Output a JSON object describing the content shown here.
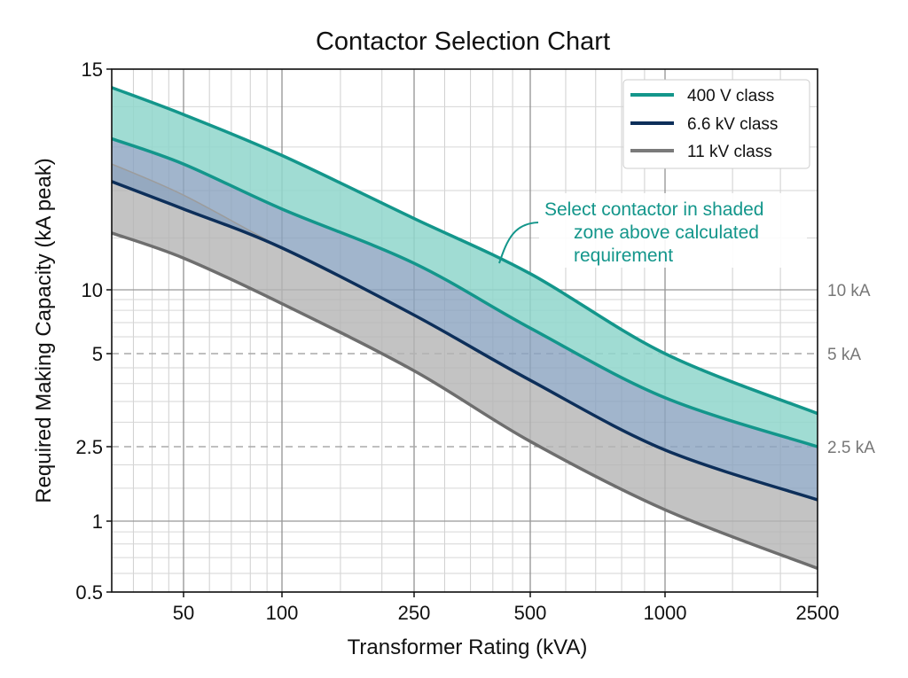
{
  "chart_data": {
    "type": "area",
    "title": "Contactor Selection Chart",
    "xlabel": "Transformer Rating (kVA)",
    "ylabel": "Required Making Capacity (kA peak)",
    "x_scale": "log",
    "xlim": [
      30,
      2500
    ],
    "ylim": [
      0.5,
      15
    ],
    "x_ticks": [
      50,
      100,
      250,
      500,
      1000,
      2500
    ],
    "x_tick_labels": [
      "50",
      "100",
      "250",
      "500",
      "1000",
      "2500"
    ],
    "y_ticks": [
      15,
      10,
      5,
      2.5,
      1,
      0.5
    ],
    "y_tick_labels": [
      "15",
      "10",
      "5",
      "2.5",
      "1",
      "0.5"
    ],
    "grid": true,
    "legend_position": "top-right",
    "x": [
      30,
      50,
      100,
      250,
      500,
      1000,
      2500
    ],
    "series": [
      {
        "name": "400 V class",
        "color": "#13968b",
        "fill": "#8fd6cb",
        "upper": [
          14.5,
          13.8,
          12.8,
          11.4,
          10.3,
          5.0,
          3.2
        ],
        "lower": [
          13.2,
          12.6,
          11.6,
          10.5,
          6.6,
          3.6,
          2.5
        ]
      },
      {
        "name": "6.6 kV class",
        "color": "#0d2f5a",
        "fill": "#8aa3bf",
        "upper": [
          13.2,
          12.6,
          11.6,
          10.5,
          6.6,
          3.6,
          2.5
        ],
        "lower": [
          12.2,
          11.6,
          10.8,
          7.6,
          4.1,
          2.4,
          1.3
        ]
      },
      {
        "name": "11 kV class",
        "color": "#6e6e6e",
        "fill": "#b4b4b4",
        "upper": [
          12.6,
          11.9,
          10.8,
          7.6,
          4.1,
          2.4,
          1.3
        ],
        "lower": [
          11.1,
          10.6,
          8.6,
          4.4,
          2.6,
          1.15,
          0.63
        ]
      }
    ],
    "reference_lines": [
      {
        "value": 10,
        "label": "10 kA",
        "style": "solid"
      },
      {
        "value": 5,
        "label": "5 kA",
        "style": "dashed"
      },
      {
        "value": 2.5,
        "label": "2.5 kA",
        "style": "dashed"
      }
    ],
    "annotation": {
      "lines": [
        "Select contactor in shaded",
        "zone above calculated",
        "requirement"
      ],
      "color": "#13968b"
    }
  }
}
